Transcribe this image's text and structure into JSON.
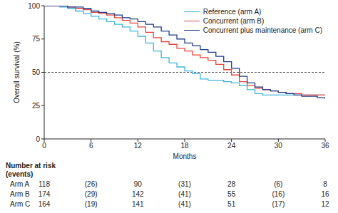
{
  "chart_data": {
    "type": "line",
    "line_style": "step",
    "x_label": "Months",
    "y_label": "Overall survival (%)",
    "x": [
      0,
      1,
      2,
      3,
      4,
      5,
      6,
      7,
      8,
      9,
      10,
      11,
      12,
      13,
      14,
      15,
      16,
      17,
      18,
      19,
      20,
      21,
      22,
      23,
      24,
      25,
      26,
      27,
      28,
      29,
      30,
      31,
      32,
      33,
      34,
      35,
      36
    ],
    "series": [
      {
        "name": "Reference (arm A)",
        "color": "#3db5dc",
        "values": [
          100,
          100,
          99,
          98,
          96,
          94,
          92,
          90,
          88,
          86,
          84,
          81,
          77,
          72,
          66,
          61,
          57,
          54,
          51,
          49,
          45,
          44,
          44,
          43,
          42,
          40,
          37,
          34,
          33,
          33,
          33,
          33,
          33,
          33,
          33,
          33,
          33
        ]
      },
      {
        "name": "Concurrent (arm B)",
        "color": "#e8453c",
        "values": [
          100,
          100,
          100,
          99,
          98,
          97,
          95,
          94,
          93,
          91,
          89,
          87,
          84,
          80,
          76,
          73,
          71,
          68,
          66,
          63,
          61,
          59,
          56,
          52,
          48,
          43,
          40,
          38,
          37,
          36,
          35,
          34,
          34,
          33,
          33,
          33,
          33
        ]
      },
      {
        "name": "Concurrent plus maintenance (arm C)",
        "color": "#1f3d8c",
        "values": [
          100,
          100,
          100,
          99,
          99,
          98,
          96,
          95,
          94,
          93,
          91,
          90,
          88,
          86,
          84,
          81,
          78,
          75,
          72,
          70,
          67,
          65,
          62,
          58,
          53,
          47,
          42,
          39,
          37,
          36,
          35,
          34,
          33,
          32,
          32,
          31,
          30
        ]
      }
    ],
    "xlim": [
      0,
      36
    ],
    "xticks": [
      0,
      6,
      12,
      18,
      24,
      30,
      36
    ],
    "ylim": [
      0,
      100
    ],
    "yticks": [
      0,
      25,
      50,
      75,
      100
    ],
    "reference_y": 50,
    "grid": false,
    "legend": "top-right",
    "risk_table": {
      "title": "Number at risk",
      "subtitle": "(events)",
      "x": [
        0,
        6,
        12,
        18,
        24,
        30,
        36
      ],
      "rows": [
        {
          "name": "Arm A",
          "cells": [
            "118",
            "(26)",
            "90",
            "(31)",
            "28",
            "(6)",
            "8"
          ]
        },
        {
          "name": "Arm B",
          "cells": [
            "174",
            "(29)",
            "142",
            "(41)",
            "55",
            "(16)",
            "16"
          ]
        },
        {
          "name": "Arm C",
          "cells": [
            "164",
            "(19)",
            "141",
            "(41)",
            "51",
            "(17)",
            "12"
          ]
        }
      ]
    }
  }
}
